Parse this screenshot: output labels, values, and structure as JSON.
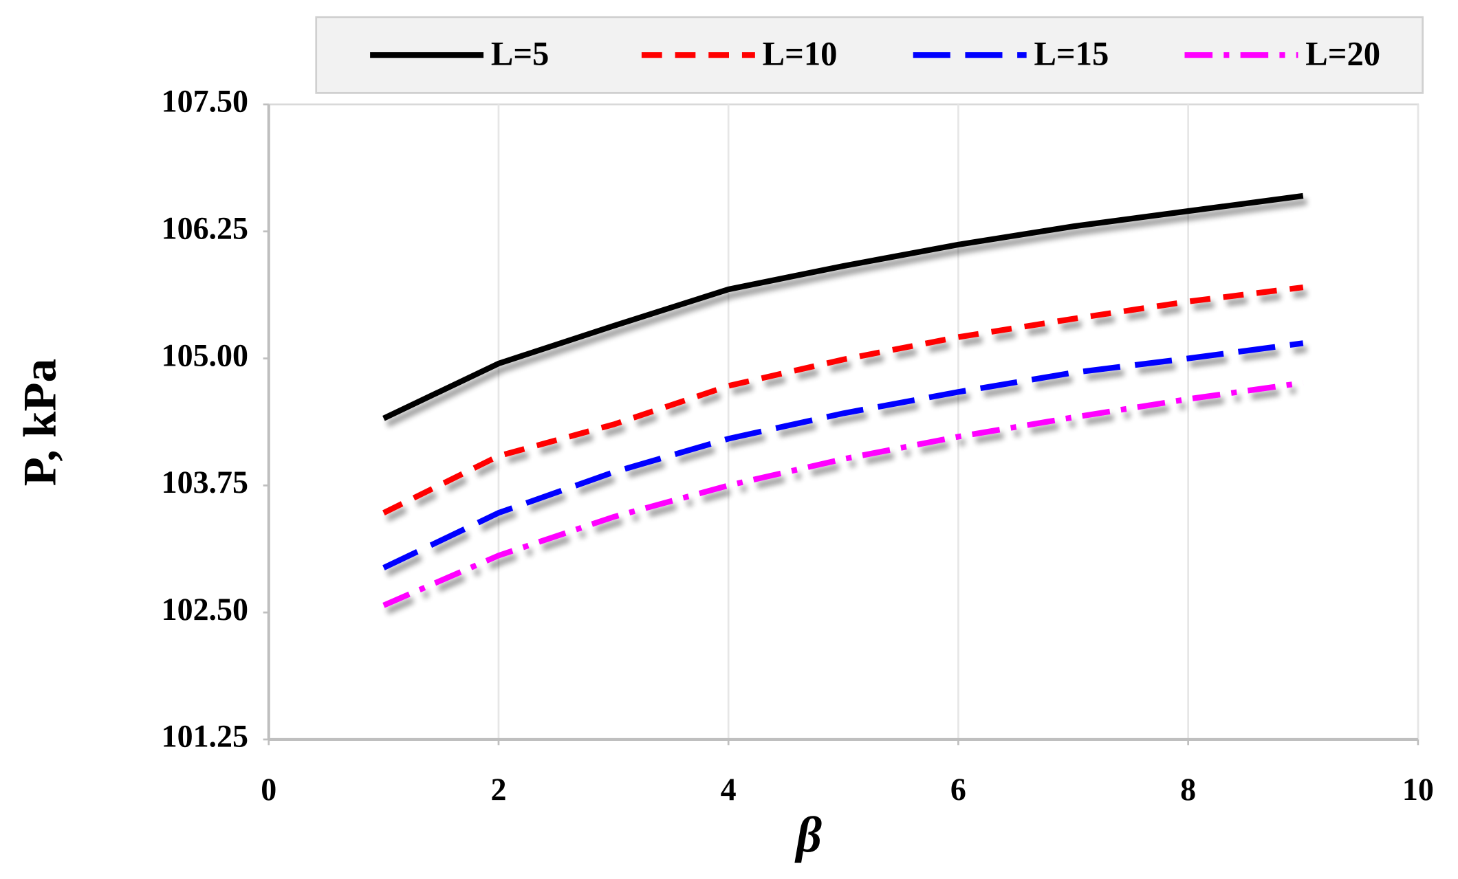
{
  "chart_data": {
    "type": "line",
    "x_label": "β",
    "y_label": "P, kPa",
    "x": [
      1,
      2,
      3,
      4,
      5,
      6,
      7,
      8,
      9
    ],
    "series": [
      {
        "name": "L=5",
        "color": "#000000",
        "dash": "solid",
        "values": [
          104.41,
          104.95,
          105.32,
          105.68,
          105.91,
          106.12,
          106.3,
          106.45,
          106.6
        ]
      },
      {
        "name": "L=10",
        "color": "#ff0000",
        "dash": "dash",
        "values": [
          103.48,
          104.04,
          104.35,
          104.73,
          104.99,
          105.21,
          105.39,
          105.56,
          105.7
        ]
      },
      {
        "name": "L=15",
        "color": "#0000ff",
        "dash": "longdash",
        "values": [
          102.94,
          103.48,
          103.88,
          104.21,
          104.46,
          104.67,
          104.86,
          105.0,
          105.15
        ]
      },
      {
        "name": "L=20",
        "color": "#ff00ff",
        "dash": "dashdot",
        "values": [
          102.57,
          103.06,
          103.44,
          103.75,
          104.01,
          104.23,
          104.42,
          104.6,
          104.76
        ]
      }
    ],
    "xlim": [
      0,
      10
    ],
    "xticks": [
      0,
      2,
      4,
      6,
      8,
      10
    ],
    "ylim": [
      101.25,
      107.5
    ],
    "yticks": [
      {
        "value": 101.25,
        "label": "101.25"
      },
      {
        "value": 102.5,
        "label": "102.50"
      },
      {
        "value": 103.75,
        "label": "103.75"
      },
      {
        "value": 105,
        "label": "105.00"
      },
      {
        "value": 106.25,
        "label": "106.25"
      },
      {
        "value": 107.5,
        "label": "107.50"
      }
    ],
    "grid": "x",
    "legend": "top"
  }
}
